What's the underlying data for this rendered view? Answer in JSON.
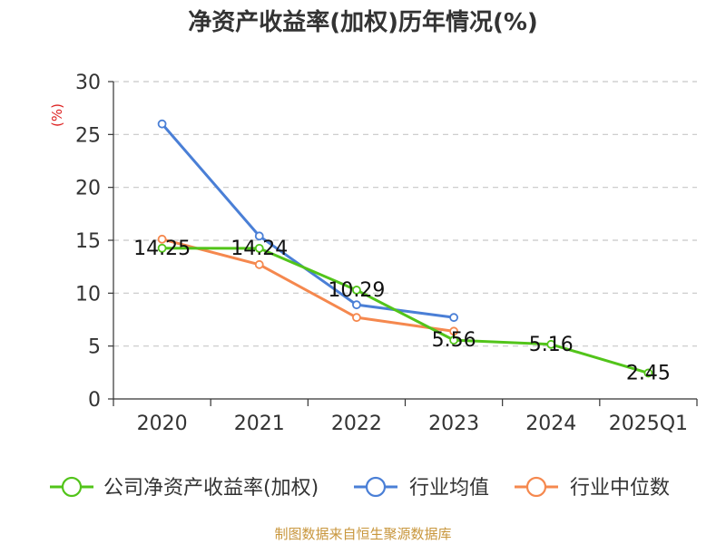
{
  "chart_data": {
    "type": "line",
    "title": "净资产收益率(加权)历年情况(%)",
    "ylabel": "(%)",
    "xlabel": "",
    "categories": [
      "2020",
      "2021",
      "2022",
      "2023",
      "2024",
      "2025Q1"
    ],
    "ylim": [
      0,
      30
    ],
    "yticks": [
      0,
      5,
      10,
      15,
      20,
      25,
      30
    ],
    "grid": true,
    "legend_position": "bottom",
    "series": [
      {
        "name": "公司净资产收益率(加权)",
        "color": "#52c41a",
        "values": [
          14.25,
          14.24,
          10.29,
          5.56,
          5.16,
          2.45
        ],
        "labels": [
          "14.25",
          "14.24",
          "10.29",
          "5.56",
          "5.16",
          "2.45"
        ]
      },
      {
        "name": "行业均值",
        "color": "#4a7fd6",
        "values": [
          26.0,
          15.4,
          8.9,
          7.7,
          null,
          null
        ]
      },
      {
        "name": "行业中位数",
        "color": "#f5884e",
        "values": [
          15.1,
          12.7,
          7.7,
          6.4,
          null,
          null
        ]
      }
    ]
  },
  "source": "制图数据来自恒生聚源数据库"
}
